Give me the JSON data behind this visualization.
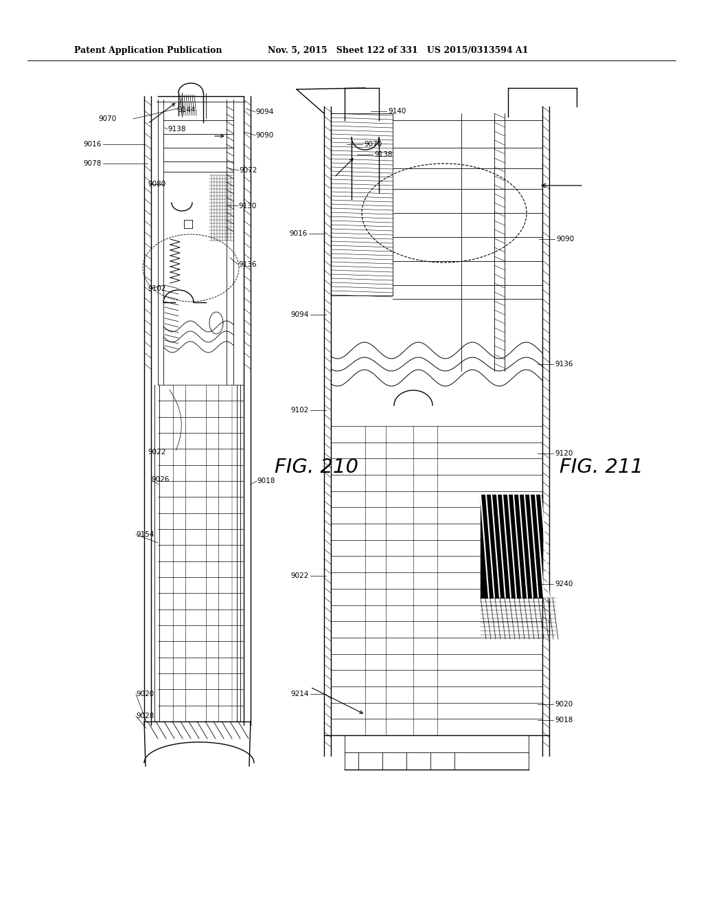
{
  "header_left": "Patent Application Publication",
  "header_mid": "Nov. 5, 2015   Sheet 122 of 331   US 2015/0313594 A1",
  "fig210_label": "FIG. 210",
  "fig211_label": "FIG. 211",
  "background_color": "#ffffff",
  "line_color": "#000000",
  "refs_210": [
    [
      "9016",
      148,
      210,
      "right"
    ],
    [
      "9078",
      155,
      235,
      "right"
    ],
    [
      "9070",
      192,
      175,
      "right"
    ],
    [
      "9144",
      255,
      163,
      "left"
    ],
    [
      "9094",
      385,
      163,
      "left"
    ],
    [
      "9138",
      238,
      190,
      "left"
    ],
    [
      "9090",
      355,
      193,
      "left"
    ],
    [
      "9080",
      212,
      268,
      "left"
    ],
    [
      "9072",
      348,
      248,
      "left"
    ],
    [
      "9130",
      342,
      300,
      "left"
    ],
    [
      "9102",
      208,
      415,
      "left"
    ],
    [
      "9136",
      348,
      378,
      "left"
    ],
    [
      "9022",
      207,
      660,
      "left"
    ],
    [
      "9026",
      213,
      700,
      "left"
    ],
    [
      "9018",
      352,
      698,
      "left"
    ],
    [
      "9154",
      195,
      780,
      "left"
    ],
    [
      "9020",
      193,
      1008,
      "left"
    ],
    [
      "9028",
      193,
      1038,
      "left"
    ]
  ],
  "refs_211": [
    [
      "9140",
      565,
      162,
      "left"
    ],
    [
      "9070",
      530,
      208,
      "left"
    ],
    [
      "9016",
      468,
      345,
      "left"
    ],
    [
      "9138",
      540,
      222,
      "left"
    ],
    [
      "9090",
      798,
      350,
      "left"
    ],
    [
      "9094",
      470,
      460,
      "left"
    ],
    [
      "9136",
      795,
      528,
      "left"
    ],
    [
      "9102",
      467,
      600,
      "left"
    ],
    [
      "9120",
      792,
      658,
      "left"
    ],
    [
      "9022",
      468,
      840,
      "left"
    ],
    [
      "9240",
      792,
      848,
      "left"
    ],
    [
      "9214",
      468,
      1012,
      "left"
    ],
    [
      "9020",
      790,
      1025,
      "left"
    ],
    [
      "9018",
      797,
      1048,
      "left"
    ]
  ]
}
